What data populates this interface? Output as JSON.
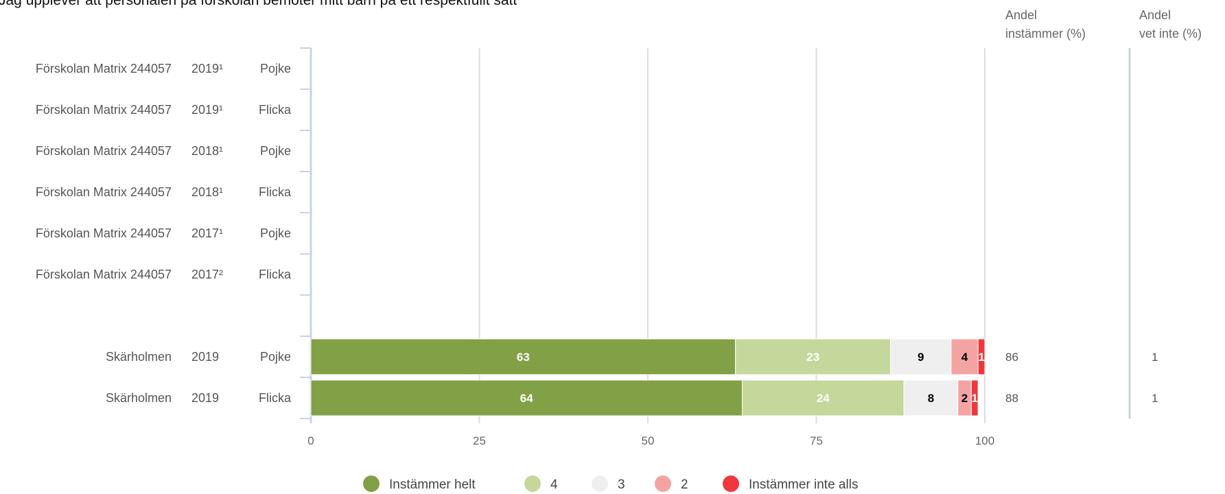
{
  "chart_data": {
    "type": "bar",
    "orientation": "horizontal",
    "stacked": true,
    "title": "Jag upplever att personalen på förskolan bemöter mitt barn på ett respektfullt sätt",
    "column_headers": {
      "share_agree": [
        "Andel",
        "instämmer (%)"
      ],
      "share_dont_know": [
        "Andel",
        "vet inte (%)"
      ]
    },
    "rows": [
      {
        "unit": "Förskolan Matrix 244057",
        "year": "2019¹",
        "gender": "Pojke",
        "values": null,
        "share_agree": "",
        "share_dont_know": ""
      },
      {
        "unit": "Förskolan Matrix 244057",
        "year": "2019¹",
        "gender": "Flicka",
        "values": null,
        "share_agree": "",
        "share_dont_know": ""
      },
      {
        "unit": "Förskolan Matrix 244057",
        "year": "2018¹",
        "gender": "Pojke",
        "values": null,
        "share_agree": "",
        "share_dont_know": ""
      },
      {
        "unit": "Förskolan Matrix 244057",
        "year": "2018¹",
        "gender": "Flicka",
        "values": null,
        "share_agree": "",
        "share_dont_know": ""
      },
      {
        "unit": "Förskolan Matrix 244057",
        "year": "2017¹",
        "gender": "Pojke",
        "values": null,
        "share_agree": "",
        "share_dont_know": ""
      },
      {
        "unit": "Förskolan Matrix 244057",
        "year": "2017²",
        "gender": "Flicka",
        "values": null,
        "share_agree": "",
        "share_dont_know": ""
      },
      {
        "unit": "",
        "year": "",
        "gender": "",
        "values": null,
        "share_agree": "",
        "share_dont_know": "",
        "spacer": true
      },
      {
        "unit": "Skärholmen",
        "year": "2019",
        "gender": "Pojke",
        "values": [
          63,
          23,
          9,
          4,
          1
        ],
        "share_agree": "86",
        "share_dont_know": "1"
      },
      {
        "unit": "Skärholmen",
        "year": "2019",
        "gender": "Flicka",
        "values": [
          64,
          24,
          8,
          2,
          1
        ],
        "share_agree": "88",
        "share_dont_know": "1"
      }
    ],
    "series": [
      {
        "name": "Instämmer helt",
        "color": "#82a045",
        "label_color": "#ffffff"
      },
      {
        "name": "4",
        "color": "#c5d89c",
        "label_color": "#ffffff"
      },
      {
        "name": "3",
        "color": "#efefef",
        "label_color": "#000000"
      },
      {
        "name": "2",
        "color": "#f4a3a3",
        "label_color": "#000000"
      },
      {
        "name": "Instämmer inte alls",
        "color": "#f0373c",
        "label_color": "#ffffff"
      }
    ],
    "xlim": [
      0,
      100
    ],
    "xticks": [
      0,
      25,
      50,
      75,
      100
    ],
    "grid": true,
    "legend_position": "bottom-center"
  }
}
